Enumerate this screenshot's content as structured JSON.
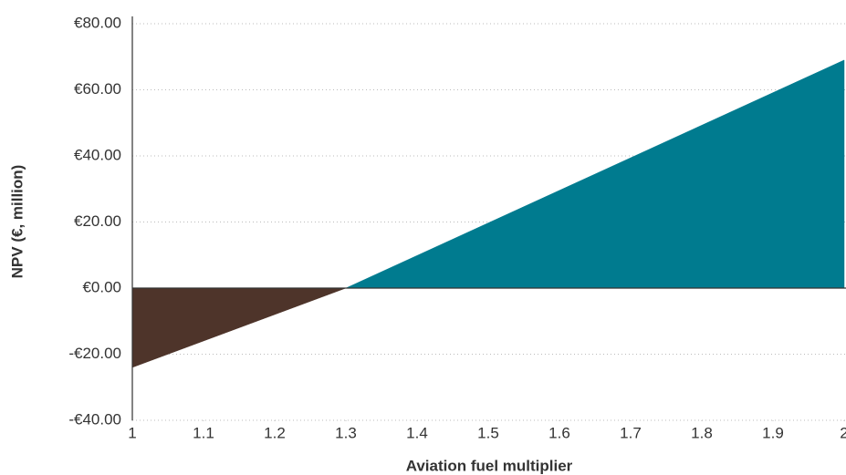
{
  "chart_data": {
    "type": "area",
    "x_label": "Aviation fuel multiplier",
    "y_label": "NPV (€, million)",
    "x": [
      1,
      1.3,
      2
    ],
    "values": [
      -24,
      0,
      69
    ],
    "positive_color": "#007b8f",
    "negative_color": "#4e342a",
    "xlim": [
      1,
      2
    ],
    "xticks": [
      1,
      1.1,
      1.2,
      1.3,
      1.4,
      1.5,
      1.6,
      1.7,
      1.8,
      1.9,
      2
    ],
    "ylim": [
      -40,
      80
    ],
    "yticks": [
      {
        "value": -40,
        "label": "-€40.00"
      },
      {
        "value": -20,
        "label": "-€20.00"
      },
      {
        "value": 0,
        "label": "€0.00"
      },
      {
        "value": 20,
        "label": "€20.00"
      },
      {
        "value": 40,
        "label": "€40.00"
      },
      {
        "value": 60,
        "label": "€60.00"
      },
      {
        "value": 80,
        "label": "€80.00"
      }
    ],
    "grid": true
  }
}
